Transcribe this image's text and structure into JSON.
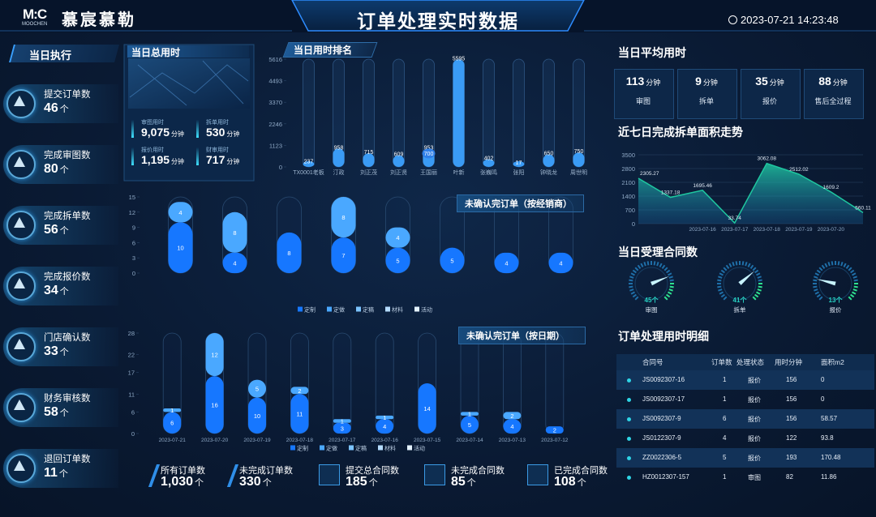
{
  "header": {
    "logo_mark": "M:C",
    "logo_sub": "MOOCHEN",
    "brand": "慕宸慕勒",
    "title": "订单处理实时数据",
    "datetime": "2023-07-21 14:23:48"
  },
  "today_exec": {
    "title": "当日执行",
    "items": [
      {
        "label": "提交订单数",
        "value": "46",
        "unit": "个"
      },
      {
        "label": "完成审图数",
        "value": "80",
        "unit": "个"
      },
      {
        "label": "完成拆单数",
        "value": "56",
        "unit": "个"
      },
      {
        "label": "完成报价数",
        "value": "34",
        "unit": "个"
      },
      {
        "label": "门店确认数",
        "value": "33",
        "unit": "个"
      },
      {
        "label": "财务审核数",
        "value": "58",
        "unit": "个"
      },
      {
        "label": "退回订单数",
        "value": "11",
        "unit": "个"
      }
    ]
  },
  "total_time": {
    "title": "当日总用时",
    "items": [
      {
        "label": "审图用时",
        "value": "9,075",
        "unit": "分钟"
      },
      {
        "label": "拆单用时",
        "value": "530",
        "unit": "分钟"
      },
      {
        "label": "报价用时",
        "value": "1,195",
        "unit": "分钟"
      },
      {
        "label": "财审用时",
        "value": "717",
        "unit": "分钟"
      }
    ]
  },
  "avg_time": {
    "title": "当日平均用时",
    "items": [
      {
        "value": "113",
        "unit": "分钟",
        "label": "审图"
      },
      {
        "value": "9",
        "unit": "分钟",
        "label": "拆单"
      },
      {
        "value": "35",
        "unit": "分钟",
        "label": "报价"
      },
      {
        "value": "88",
        "unit": "分钟",
        "label": "售后全过程"
      }
    ]
  },
  "table": {
    "title": "订单处理用时明细",
    "columns": [
      "合同号",
      "订单数",
      "处理状态",
      "用时分钟",
      "面积m2"
    ],
    "rows": [
      [
        "JS0092307-16",
        "1",
        "报价",
        "156",
        "0"
      ],
      [
        "JS0092307-17",
        "1",
        "报价",
        "156",
        "0"
      ],
      [
        "JS0092307-9",
        "6",
        "报价",
        "156",
        "58.57"
      ],
      [
        "JS0122307-9",
        "4",
        "报价",
        "122",
        "93.8"
      ],
      [
        "ZZ0022306-5",
        "5",
        "报价",
        "193",
        "170.48"
      ],
      [
        "HZ0012307-157",
        "1",
        "审图",
        "82",
        "11.86"
      ]
    ]
  },
  "bottom_stats": {
    "items": [
      {
        "label": "所有订单数",
        "value": "1,030",
        "unit": "个"
      },
      {
        "label": "未完成订单数",
        "value": "330",
        "unit": "个"
      },
      {
        "label": "提交总合同数",
        "value": "185",
        "unit": "个"
      },
      {
        "label": "未完成合同数",
        "value": "85",
        "unit": "个"
      },
      {
        "label": "已完成合同数",
        "value": "108",
        "unit": "个"
      }
    ]
  },
  "chart_data": [
    {
      "type": "bar",
      "title": "当日用时排名",
      "categories": [
        "TX0001老板",
        "汀政",
        "刘正茂",
        "刘正贤",
        "王国丽",
        "叶新",
        "张巍鸣",
        "张阳",
        "钟晓龙",
        "周世明"
      ],
      "series": [
        {
          "color": "#3a9bf5",
          "values": [
            237,
            958,
            715,
            609,
            953,
            5595,
            402,
            17,
            650,
            750
          ]
        },
        {
          "color": "#2f7fe8",
          "values": [
            null,
            null,
            null,
            null,
            700,
            null,
            null,
            null,
            null,
            null
          ]
        }
      ],
      "ylim": [
        0,
        5616
      ],
      "yticks": [
        0,
        1123,
        2246,
        3370,
        4493,
        5616
      ]
    },
    {
      "type": "stacked_bar",
      "title": "未确认完订单（按经销商）",
      "categories": [
        null,
        null,
        null,
        null,
        null,
        null,
        null,
        null
      ],
      "series": [
        {
          "name": "定制",
          "color": "#1677ff",
          "values": [
            10,
            4,
            8,
            7,
            5,
            5,
            4,
            4
          ]
        },
        {
          "name": "定做",
          "color": "#4aa8ff",
          "values": [
            4,
            8,
            null,
            8,
            4,
            null,
            null,
            null
          ]
        },
        {
          "name": "定稿",
          "color": "#7cc4ff",
          "values": [
            null,
            null,
            null,
            null,
            null,
            null,
            null,
            null
          ]
        },
        {
          "name": "材料",
          "color": "#b5dcff",
          "values": [
            null,
            null,
            null,
            null,
            null,
            null,
            null,
            null
          ]
        },
        {
          "name": "活动",
          "color": "#e3f2ff",
          "values": [
            null,
            null,
            null,
            null,
            null,
            null,
            null,
            null
          ]
        }
      ],
      "ylim": [
        0,
        15
      ],
      "yticks": [
        0,
        3,
        6,
        9,
        12,
        15
      ]
    },
    {
      "type": "stacked_bar",
      "title": "未确认完订单（按日期）",
      "categories": [
        "2023-07-21",
        "2023-07-20",
        "2023-07-19",
        "2023-07-18",
        "2023-07-17",
        "2023-07-16",
        "2023-07-15",
        "2023-07-14",
        "2023-07-13",
        "2023-07-12"
      ],
      "series": [
        {
          "name": "定制",
          "color": "#1677ff",
          "values": [
            6,
            16,
            10,
            11,
            3,
            4,
            14,
            5,
            4,
            2
          ]
        },
        {
          "name": "定做",
          "color": "#4aa8ff",
          "values": [
            1,
            12,
            5,
            2,
            1,
            1,
            null,
            1,
            2,
            null
          ]
        },
        {
          "name": "定稿",
          "color": "#7cc4ff",
          "values": [
            null,
            null,
            null,
            null,
            null,
            null,
            null,
            null,
            null,
            null
          ]
        },
        {
          "name": "材料",
          "color": "#b5dcff",
          "values": [
            null,
            null,
            null,
            null,
            null,
            null,
            null,
            null,
            null,
            null
          ]
        },
        {
          "name": "活动",
          "color": "#e3f2ff",
          "values": [
            null,
            null,
            null,
            null,
            null,
            null,
            null,
            null,
            null,
            null
          ]
        }
      ],
      "ylim": [
        0,
        28
      ],
      "yticks": [
        0,
        6,
        11,
        17,
        22,
        28
      ]
    },
    {
      "type": "area",
      "title": "近七日完成拆单面积走势",
      "categories": [
        null,
        null,
        "2023-07-16",
        "2023-07-17",
        "2023-07-18",
        "2023-07-19",
        "2023-07-20",
        null
      ],
      "values": [
        2305.27,
        1337.18,
        1695.46,
        33.74,
        3062.08,
        2512.02,
        1609.2,
        560.11
      ],
      "color": "#1fc7a0",
      "grid": true,
      "ylim": [
        0,
        3500
      ],
      "yticks": [
        0,
        700,
        1400,
        2100,
        2800,
        3500
      ]
    },
    {
      "type": "gauge",
      "title": "当日受理合同数",
      "categories": [
        "审图",
        "拆单",
        "报价"
      ],
      "values": [
        45,
        41,
        13
      ],
      "value_labels": [
        "45个",
        "41个",
        "13个"
      ],
      "lim": [
        0,
        60
      ],
      "color": "#27d3c3"
    }
  ]
}
